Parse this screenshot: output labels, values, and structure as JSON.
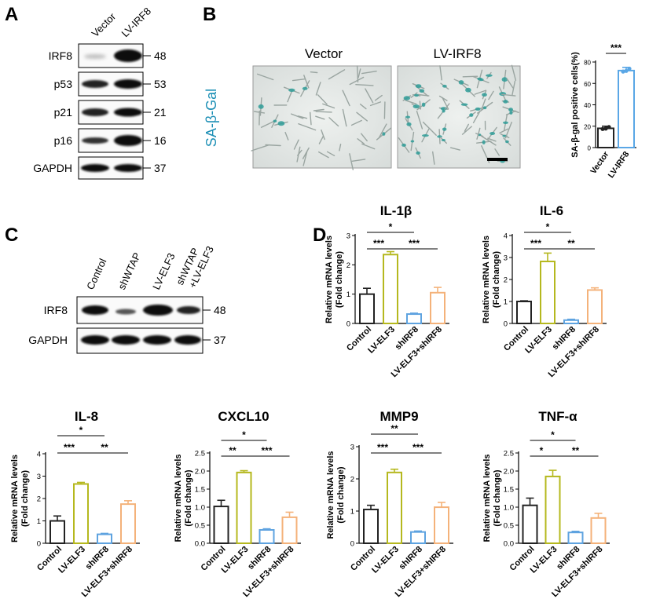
{
  "panels": {
    "A": "A",
    "B": "B",
    "C": "C",
    "D": "D"
  },
  "blot_a": {
    "lanes": [
      "Vector",
      "LV-IRF8"
    ],
    "rows": [
      {
        "label": "IRF8",
        "kda": "48"
      },
      {
        "label": "p53",
        "kda": "53"
      },
      {
        "label": "p21",
        "kda": "21"
      },
      {
        "label": "p16",
        "kda": "16"
      },
      {
        "label": "GAPDH",
        "kda": "37"
      }
    ]
  },
  "micro": {
    "labels": [
      "Vector",
      "LV-IRF8"
    ],
    "stain": "SA-β-Gal"
  },
  "blot_c": {
    "lanes": [
      "Control",
      "shWTAP",
      "LV-ELF3",
      "shWTAP",
      "+LV-ELF3"
    ],
    "rows": [
      {
        "label": "IRF8",
        "kda": "48"
      },
      {
        "label": "GAPDH",
        "kda": "37"
      }
    ]
  },
  "colors": {
    "control": "#222222",
    "lv": "#b5b81e",
    "sh": "#5ea3e0",
    "combo": "#f4b27a",
    "teal": "#1c8fb5",
    "bar_b": "#5aa7e6"
  },
  "chart_data": [
    {
      "type": "bar",
      "id": "sabgal",
      "title": "",
      "ylabel": "SA-β-gal positive cells(%)",
      "categories": [
        "Vector",
        "LV-IRF8"
      ],
      "values": [
        18,
        72
      ],
      "errors": [
        2,
        3
      ],
      "ylim": [
        0,
        80
      ],
      "yticks": [
        "0",
        "20",
        "40",
        "60",
        "80"
      ],
      "sig": [
        {
          "text": "***",
          "from": 0,
          "to": 1
        }
      ]
    },
    {
      "type": "bar",
      "id": "il1b",
      "title": "IL-1β",
      "ylabel": [
        "Relative mRNA levels",
        "(Fold change)"
      ],
      "categories": [
        "Control",
        "LV-ELF3",
        "shIRF8",
        "LV-ELF3+shIRF8"
      ],
      "values": [
        1.0,
        2.35,
        0.32,
        1.05
      ],
      "errors": [
        0.2,
        0.1,
        0.03,
        0.18
      ],
      "ylim": [
        0,
        3
      ],
      "yticks": [
        "0",
        "1",
        "2",
        "3"
      ],
      "sig": [
        {
          "text": "*",
          "from": 0,
          "to": 2
        },
        {
          "text": "***",
          "from": 0,
          "to": 1
        },
        {
          "text": "***",
          "from": 1,
          "to": 3
        }
      ]
    },
    {
      "type": "bar",
      "id": "il6",
      "title": "IL-6",
      "ylabel": [
        "Relative mRNA levels",
        "(Fold change)"
      ],
      "categories": [
        "Control",
        "LV-ELF3",
        "shIRF8",
        "LV-ELF3+shIRF8"
      ],
      "values": [
        1.0,
        2.82,
        0.15,
        1.52
      ],
      "errors": [
        0.03,
        0.38,
        0.04,
        0.1
      ],
      "ylim": [
        0,
        4
      ],
      "yticks": [
        "0",
        "1",
        "2",
        "3",
        "4"
      ],
      "sig": [
        {
          "text": "*",
          "from": 0,
          "to": 2
        },
        {
          "text": "***",
          "from": 0,
          "to": 1
        },
        {
          "text": "**",
          "from": 1,
          "to": 3
        }
      ]
    },
    {
      "type": "bar",
      "id": "il8",
      "title": "IL-8",
      "ylabel": [
        "Relative mRNA levels",
        "(Fold change)"
      ],
      "categories": [
        "Control",
        "LV-ELF3",
        "shIRF8",
        "LV-ELF3+shIRF8"
      ],
      "values": [
        1.0,
        2.65,
        0.4,
        1.75
      ],
      "errors": [
        0.22,
        0.07,
        0.04,
        0.15
      ],
      "ylim": [
        0,
        4
      ],
      "yticks": [
        "0",
        "1",
        "2",
        "3",
        "4"
      ],
      "sig": [
        {
          "text": "*",
          "from": 0,
          "to": 2
        },
        {
          "text": "***",
          "from": 0,
          "to": 1
        },
        {
          "text": "**",
          "from": 1,
          "to": 3
        }
      ]
    },
    {
      "type": "bar",
      "id": "cxcl10",
      "title": "CXCL10",
      "ylabel": [
        "Relative mRNA levels",
        "(Fold change)"
      ],
      "categories": [
        "Control",
        "LV-ELF3",
        "shIRF8",
        "LV-ELF3+shIRF8"
      ],
      "values": [
        1.02,
        1.96,
        0.37,
        0.72
      ],
      "errors": [
        0.17,
        0.05,
        0.03,
        0.14
      ],
      "ylim": [
        0,
        2.5
      ],
      "yticks": [
        "0.0",
        "0.5",
        "1.0",
        "1.5",
        "2.0",
        "2.5"
      ],
      "sig": [
        {
          "text": "*",
          "from": 0,
          "to": 2
        },
        {
          "text": "**",
          "from": 0,
          "to": 1
        },
        {
          "text": "***",
          "from": 1,
          "to": 3
        }
      ]
    },
    {
      "type": "bar",
      "id": "mmp9",
      "title": "MMP9",
      "ylabel": [
        "Relative mRNA levels",
        "(Fold change)"
      ],
      "categories": [
        "Control",
        "LV-ELF3",
        "shIRF8",
        "LV-ELF3+shIRF8"
      ],
      "values": [
        1.05,
        2.2,
        0.35,
        1.12
      ],
      "errors": [
        0.13,
        0.1,
        0.03,
        0.15
      ],
      "ylim": [
        0,
        3
      ],
      "yticks": [
        "0",
        "1",
        "2",
        "3"
      ],
      "sig": [
        {
          "text": "**",
          "from": 0,
          "to": 2
        },
        {
          "text": "***",
          "from": 0,
          "to": 1
        },
        {
          "text": "***",
          "from": 1,
          "to": 3
        }
      ]
    },
    {
      "type": "bar",
      "id": "tnfa",
      "title": "TNF-α",
      "ylabel": [
        "Relative mRNA levels",
        "(Fold change)"
      ],
      "categories": [
        "Control",
        "LV-ELF3",
        "shIRF8",
        "LV-ELF3+shIRF8"
      ],
      "values": [
        1.05,
        1.85,
        0.3,
        0.7
      ],
      "errors": [
        0.2,
        0.17,
        0.03,
        0.13
      ],
      "ylim": [
        0,
        2.5
      ],
      "yticks": [
        "0.0",
        "0.5",
        "1.0",
        "1.5",
        "2.0",
        "2.5"
      ],
      "sig": [
        {
          "text": "*",
          "from": 0,
          "to": 2
        },
        {
          "text": "*",
          "from": 0,
          "to": 1
        },
        {
          "text": "**",
          "from": 1,
          "to": 3
        }
      ]
    }
  ]
}
